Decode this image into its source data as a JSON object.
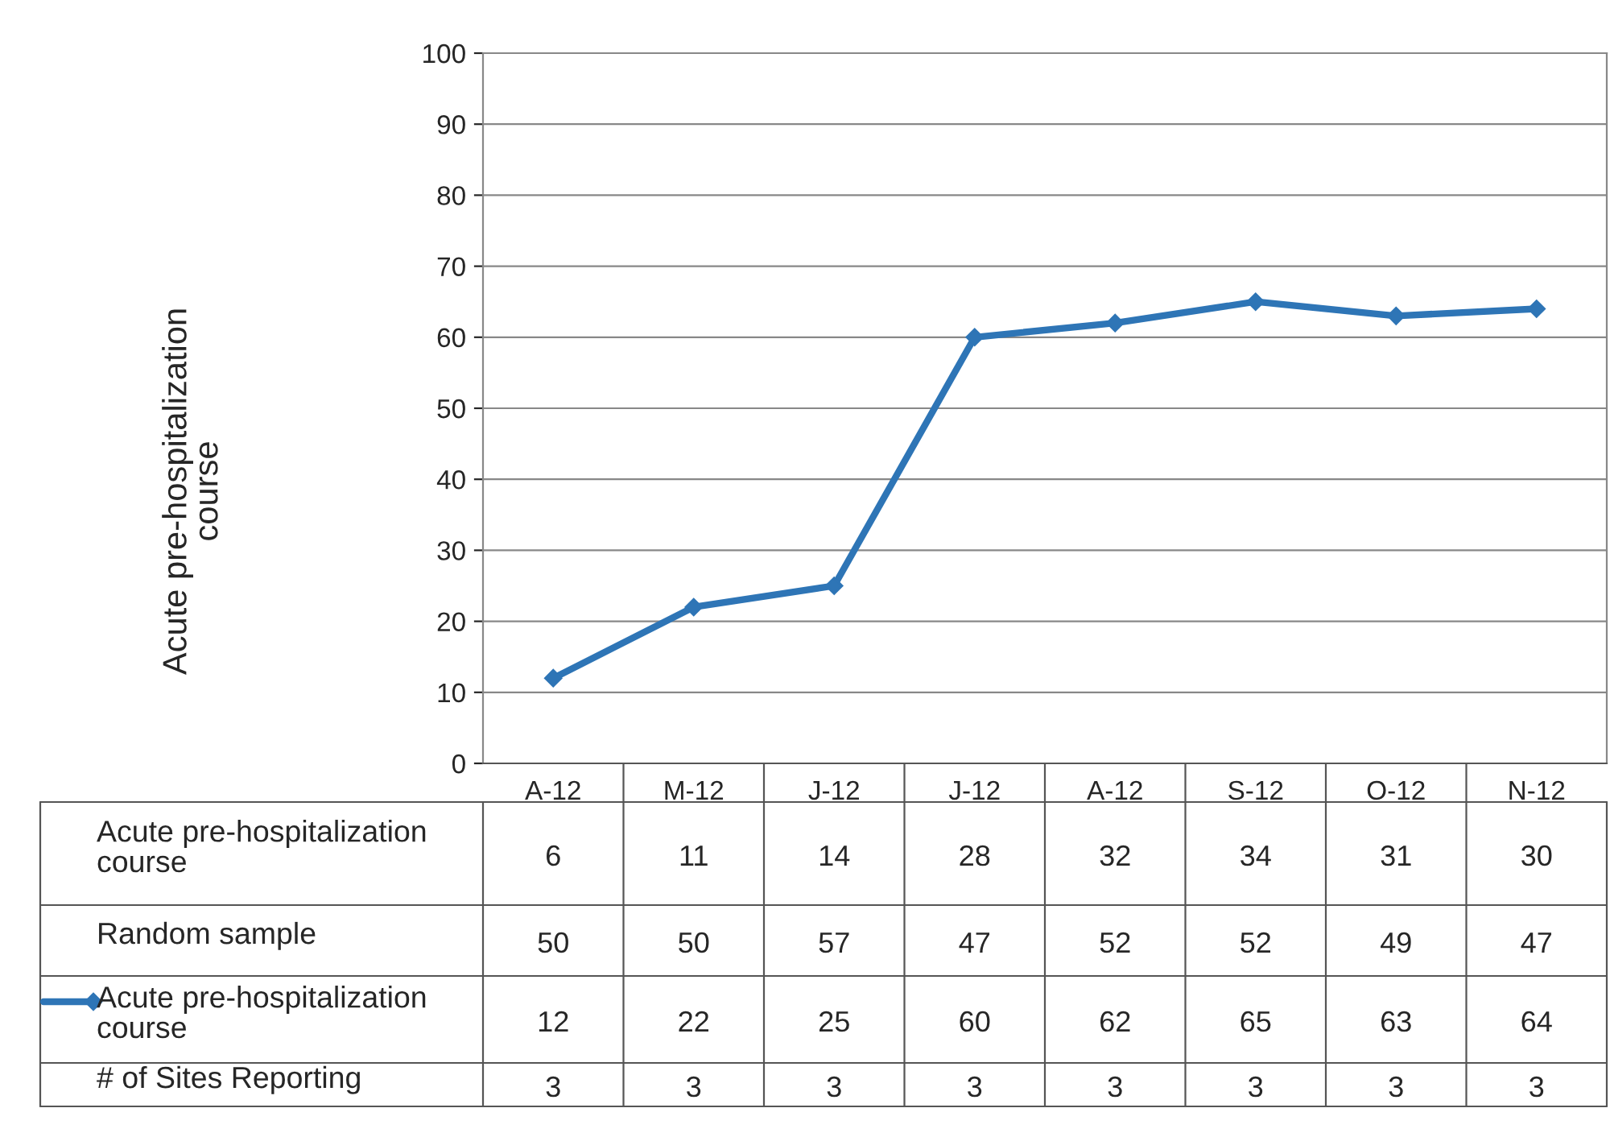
{
  "chart_data": {
    "type": "line",
    "categories": [
      "A-12",
      "M-12",
      "J-12",
      "J-12",
      "A-12",
      "S-12",
      "O-12",
      "N-12"
    ],
    "series": [
      {
        "name": "Acute pre-hospitalization\ncourse",
        "color": "#2e75b6",
        "values": [
          12,
          22,
          25,
          60,
          62,
          65,
          63,
          64
        ]
      }
    ],
    "annotations": [
      "Acute pre-hospitalization\ncourse",
      "Acute pre-hospitalization\ncourse",
      "6",
      "11",
      "14",
      "28",
      "32",
      "34",
      "31",
      "30",
      "Random sample",
      "50",
      "50",
      "57",
      "47",
      "52",
      "52",
      "49",
      "47",
      "# of Sites Reporting",
      "3",
      "3",
      "3",
      "3",
      "3",
      "3",
      "3",
      "3"
    ],
    "ylim": [
      0,
      100
    ],
    "yticks": [
      0,
      10,
      20,
      30,
      40,
      50,
      60,
      70,
      80,
      90,
      100
    ],
    "grid": "y",
    "marker": "diamond",
    "line_style": "solid",
    "data_labels": true
  }
}
